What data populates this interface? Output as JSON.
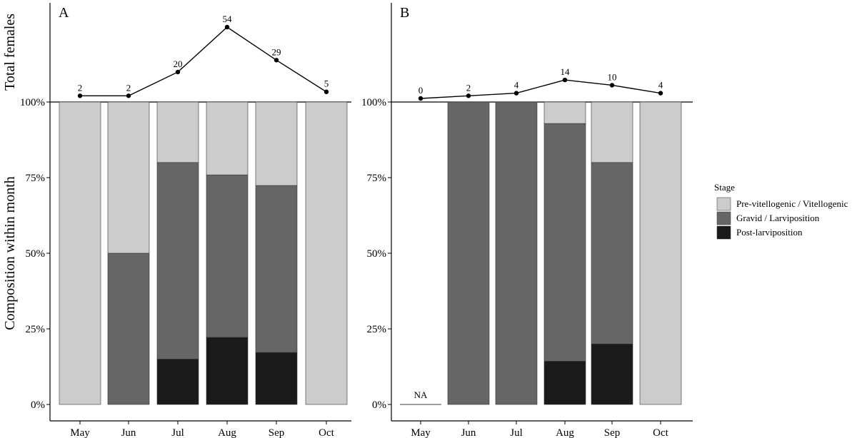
{
  "chart_data": {
    "type": "bar",
    "layout": "stacked-percent bars with count line above",
    "ylabel": "Composition within month",
    "count_axis_label": "Total females",
    "y_ticks": [
      "0%",
      "25%",
      "50%",
      "75%",
      "100%"
    ],
    "ylim": [
      0,
      100
    ],
    "categories": [
      "May",
      "Jun",
      "Jul",
      "Aug",
      "Sep",
      "Oct"
    ],
    "legend": {
      "title": "Stage",
      "position": "right",
      "entries": [
        {
          "name": "Pre-vitellogenic / Vitellogenic",
          "color": "#cccccc"
        },
        {
          "name": "Gravid / Larviposition",
          "color": "#666666"
        },
        {
          "name": "Post-larviposition",
          "color": "#1a1a1a"
        }
      ]
    },
    "panels": [
      {
        "label": "A",
        "counts": [
          2,
          2,
          20,
          54,
          29,
          5
        ],
        "series": [
          {
            "name": "Post-larviposition",
            "values": [
              0,
              0,
              15,
              22.2,
              17.2,
              0
            ]
          },
          {
            "name": "Gravid / Larviposition",
            "values": [
              0,
              50,
              65,
              53.7,
              55.2,
              0
            ]
          },
          {
            "name": "Pre-vitellogenic / Vitellogenic",
            "values": [
              100,
              50,
              20,
              24.1,
              27.6,
              100
            ]
          }
        ],
        "na_months": []
      },
      {
        "label": "B",
        "counts": [
          0,
          2,
          4,
          14,
          10,
          4
        ],
        "series": [
          {
            "name": "Post-larviposition",
            "values": [
              0,
              0,
              0,
              14.3,
              20,
              0
            ]
          },
          {
            "name": "Gravid / Larviposition",
            "values": [
              0,
              100,
              100,
              78.6,
              60,
              0
            ]
          },
          {
            "name": "Pre-vitellogenic / Vitellogenic",
            "values": [
              0,
              0,
              0,
              7.1,
              20,
              100
            ]
          }
        ],
        "na_months": [
          "May"
        ],
        "na_label": "NA"
      }
    ]
  }
}
